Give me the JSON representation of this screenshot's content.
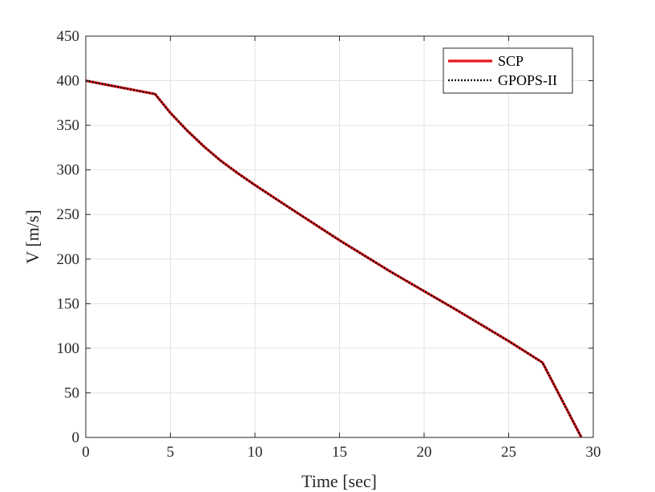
{
  "chart_data": {
    "type": "line",
    "xlabel": "Time [sec]",
    "ylabel": "V [m/s]",
    "xlim": [
      0,
      30
    ],
    "ylim": [
      0,
      450
    ],
    "xticks": [
      "0",
      "5",
      "10",
      "15",
      "20",
      "25",
      "30"
    ],
    "yticks": [
      "0",
      "50",
      "100",
      "150",
      "200",
      "250",
      "300",
      "350",
      "400",
      "450"
    ],
    "grid": true,
    "legend_position": "top-right",
    "series": [
      {
        "name": "SCP",
        "color": "#e8161b",
        "style": "solid",
        "x": [
          0,
          4.1,
          5,
          6,
          7,
          8,
          9,
          10,
          12,
          15,
          18,
          20,
          22,
          25,
          27,
          29.3
        ],
        "y": [
          400,
          385,
          364,
          344,
          326,
          310,
          296,
          283,
          258,
          221,
          186,
          164,
          142,
          108,
          84,
          0
        ]
      },
      {
        "name": "GPOPS-II",
        "color": "#000000",
        "style": "dotted",
        "x": [
          0,
          4.1,
          5,
          6,
          7,
          8,
          9,
          10,
          12,
          15,
          18,
          20,
          22,
          25,
          27,
          29.3
        ],
        "y": [
          400,
          385,
          364,
          344,
          326,
          310,
          296,
          283,
          258,
          221,
          186,
          164,
          142,
          108,
          84,
          0
        ]
      }
    ]
  }
}
